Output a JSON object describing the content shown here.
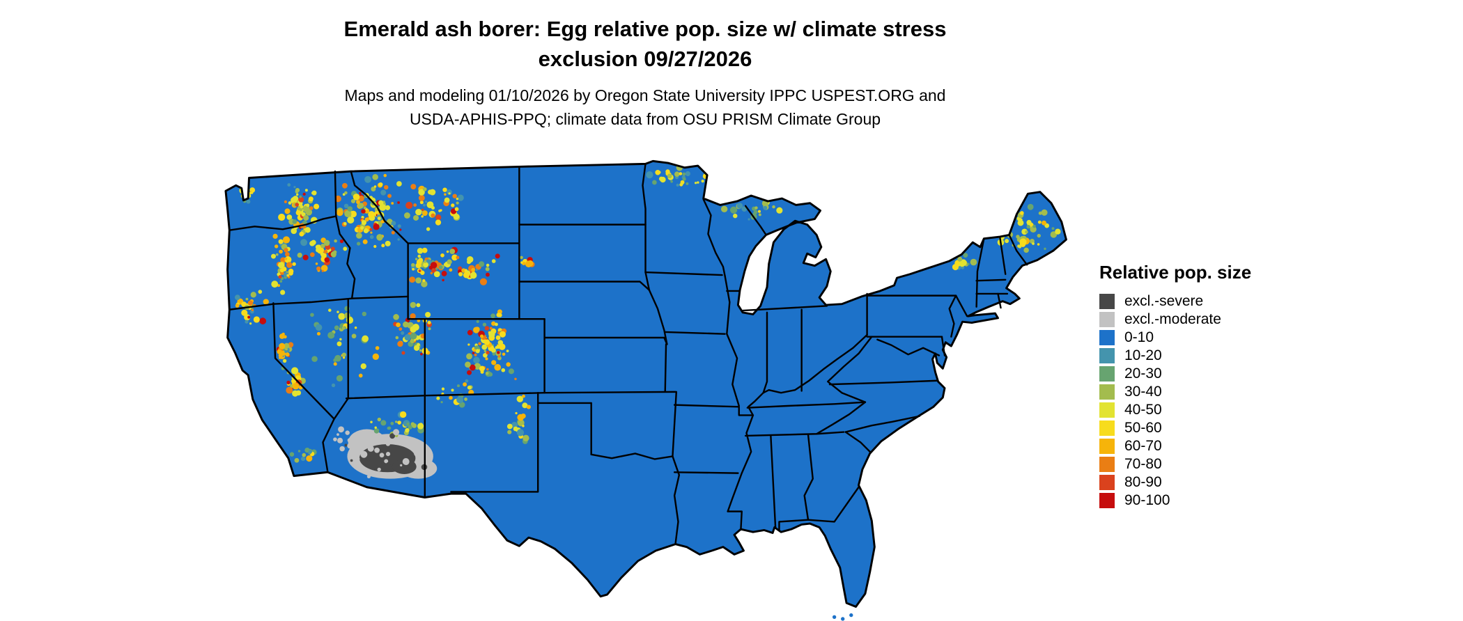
{
  "title": {
    "line1": "Emerald ash borer: Egg relative pop. size w/ climate stress",
    "line2": "exclusion 09/27/2026"
  },
  "subtitle": {
    "line1": "Maps and modeling 01/10/2026 by Oregon State University IPPC USPEST.ORG and",
    "line2": "USDA-APHIS-PPQ; climate data from OSU PRISM Climate Group"
  },
  "legend": {
    "title": "Relative pop. size",
    "items": [
      {
        "label": "excl.-severe",
        "color": "#474747"
      },
      {
        "label": "excl.-moderate",
        "color": "#c2c2c2"
      },
      {
        "label": "0-10",
        "color": "#1d72c9"
      },
      {
        "label": "10-20",
        "color": "#4494ad"
      },
      {
        "label": "20-30",
        "color": "#67a470"
      },
      {
        "label": "30-40",
        "color": "#a3bc4e"
      },
      {
        "label": "40-50",
        "color": "#e2e332"
      },
      {
        "label": "50-60",
        "color": "#f7dc1d"
      },
      {
        "label": "60-70",
        "color": "#f6b40a"
      },
      {
        "label": "70-80",
        "color": "#ea7e14"
      },
      {
        "label": "80-90",
        "color": "#da421d"
      },
      {
        "label": "90-100",
        "color": "#c60d0d"
      }
    ]
  },
  "map": {
    "base_category": "0-10",
    "region": "Contiguous United States"
  }
}
